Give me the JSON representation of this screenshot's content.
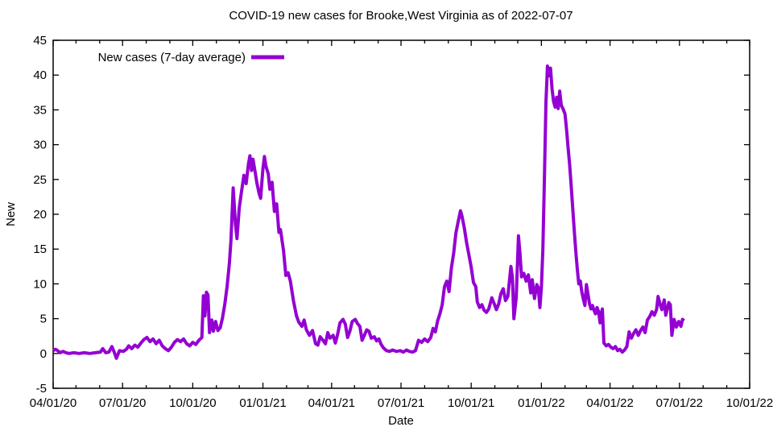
{
  "title": "COVID-19 new cases for Brooke,West Virginia as of 2022-07-07",
  "chart_data": {
    "type": "line",
    "title": "COVID-19 new cases for Brooke,West Virginia as of 2022-07-07",
    "xlabel": "Date",
    "ylabel": "New",
    "ylim": [
      -5,
      45
    ],
    "xlim": [
      "04/01/20",
      "10/01/22"
    ],
    "grid": false,
    "legend_position": "top-left-inside",
    "background_color": "#ffffff",
    "border_color": "#000000",
    "y_ticks": [
      -5,
      0,
      5,
      10,
      15,
      20,
      25,
      30,
      35,
      40,
      45
    ],
    "x_ticks": [
      "04/01/20",
      "07/01/20",
      "10/01/20",
      "01/01/21",
      "04/01/21",
      "07/01/21",
      "10/01/21",
      "01/01/22",
      "04/01/22",
      "07/01/22",
      "10/01/22"
    ],
    "x_minor_ticks": "monthly",
    "series": [
      {
        "name": "New cases (7-day average)",
        "color": "#9400d3",
        "points": [
          [
            "2020-04-01",
            0.4
          ],
          [
            "2020-04-04",
            0.6
          ],
          [
            "2020-04-07",
            0.4
          ],
          [
            "2020-04-10",
            0.1
          ],
          [
            "2020-04-14",
            0.3
          ],
          [
            "2020-04-18",
            0.1
          ],
          [
            "2020-04-22",
            0.0
          ],
          [
            "2020-04-28",
            0.1
          ],
          [
            "2020-05-05",
            0.0
          ],
          [
            "2020-05-12",
            0.1
          ],
          [
            "2020-05-19",
            0.0
          ],
          [
            "2020-05-26",
            0.1
          ],
          [
            "2020-06-02",
            0.2
          ],
          [
            "2020-06-05",
            0.7
          ],
          [
            "2020-06-09",
            0.1
          ],
          [
            "2020-06-13",
            0.2
          ],
          [
            "2020-06-17",
            1.0
          ],
          [
            "2020-06-20",
            0.2
          ],
          [
            "2020-06-23",
            -0.7
          ],
          [
            "2020-06-27",
            0.4
          ],
          [
            "2020-07-02",
            0.3
          ],
          [
            "2020-07-06",
            0.6
          ],
          [
            "2020-07-09",
            1.1
          ],
          [
            "2020-07-13",
            0.7
          ],
          [
            "2020-07-17",
            1.2
          ],
          [
            "2020-07-21",
            0.9
          ],
          [
            "2020-07-25",
            1.5
          ],
          [
            "2020-07-29",
            2.0
          ],
          [
            "2020-08-02",
            2.3
          ],
          [
            "2020-08-06",
            1.7
          ],
          [
            "2020-08-10",
            2.1
          ],
          [
            "2020-08-14",
            1.4
          ],
          [
            "2020-08-18",
            1.9
          ],
          [
            "2020-08-22",
            1.1
          ],
          [
            "2020-08-26",
            0.7
          ],
          [
            "2020-08-30",
            0.4
          ],
          [
            "2020-09-03",
            0.9
          ],
          [
            "2020-09-07",
            1.6
          ],
          [
            "2020-09-11",
            2.0
          ],
          [
            "2020-09-15",
            1.7
          ],
          [
            "2020-09-19",
            2.1
          ],
          [
            "2020-09-23",
            1.4
          ],
          [
            "2020-09-27",
            1.1
          ],
          [
            "2020-10-01",
            1.6
          ],
          [
            "2020-10-05",
            1.3
          ],
          [
            "2020-10-09",
            1.9
          ],
          [
            "2020-10-13",
            2.3
          ],
          [
            "2020-10-15",
            8.3
          ],
          [
            "2020-10-17",
            5.4
          ],
          [
            "2020-10-19",
            8.8
          ],
          [
            "2020-10-21",
            8.4
          ],
          [
            "2020-10-23",
            3.0
          ],
          [
            "2020-10-26",
            4.8
          ],
          [
            "2020-10-28",
            3.2
          ],
          [
            "2020-10-31",
            4.6
          ],
          [
            "2020-11-03",
            3.3
          ],
          [
            "2020-11-06",
            3.7
          ],
          [
            "2020-11-09",
            5.1
          ],
          [
            "2020-11-12",
            7.1
          ],
          [
            "2020-11-15",
            9.6
          ],
          [
            "2020-11-18",
            13.0
          ],
          [
            "2020-11-20",
            16.2
          ],
          [
            "2020-11-23",
            23.8
          ],
          [
            "2020-11-26",
            18.6
          ],
          [
            "2020-11-28",
            16.5
          ],
          [
            "2020-12-01",
            21.0
          ],
          [
            "2020-12-04",
            23.3
          ],
          [
            "2020-12-07",
            25.6
          ],
          [
            "2020-12-10",
            24.4
          ],
          [
            "2020-12-13",
            27.2
          ],
          [
            "2020-12-15",
            28.4
          ],
          [
            "2020-12-17",
            26.3
          ],
          [
            "2020-12-19",
            27.9
          ],
          [
            "2020-12-22",
            25.9
          ],
          [
            "2020-12-24",
            24.5
          ],
          [
            "2020-12-27",
            23.0
          ],
          [
            "2020-12-29",
            22.3
          ],
          [
            "2021-01-01",
            26.5
          ],
          [
            "2021-01-03",
            28.3
          ],
          [
            "2021-01-05",
            26.9
          ],
          [
            "2021-01-08",
            25.8
          ],
          [
            "2021-01-10",
            23.6
          ],
          [
            "2021-01-13",
            24.6
          ],
          [
            "2021-01-16",
            20.4
          ],
          [
            "2021-01-19",
            21.5
          ],
          [
            "2021-01-22",
            17.4
          ],
          [
            "2021-01-24",
            17.8
          ],
          [
            "2021-01-28",
            14.8
          ],
          [
            "2021-01-31",
            11.2
          ],
          [
            "2021-02-03",
            11.6
          ],
          [
            "2021-02-06",
            10.4
          ],
          [
            "2021-02-10",
            7.6
          ],
          [
            "2021-02-14",
            5.4
          ],
          [
            "2021-02-17",
            4.5
          ],
          [
            "2021-02-21",
            3.9
          ],
          [
            "2021-02-24",
            4.8
          ],
          [
            "2021-02-27",
            3.4
          ],
          [
            "2021-03-03",
            2.6
          ],
          [
            "2021-03-07",
            3.3
          ],
          [
            "2021-03-11",
            1.4
          ],
          [
            "2021-03-14",
            1.2
          ],
          [
            "2021-03-17",
            2.4
          ],
          [
            "2021-03-20",
            2.0
          ],
          [
            "2021-03-24",
            1.4
          ],
          [
            "2021-03-27",
            3.0
          ],
          [
            "2021-03-30",
            2.2
          ],
          [
            "2021-04-03",
            2.6
          ],
          [
            "2021-04-06",
            1.5
          ],
          [
            "2021-04-09",
            2.8
          ],
          [
            "2021-04-12",
            4.4
          ],
          [
            "2021-04-16",
            4.9
          ],
          [
            "2021-04-19",
            4.2
          ],
          [
            "2021-04-22",
            2.3
          ],
          [
            "2021-04-25",
            3.2
          ],
          [
            "2021-04-28",
            4.6
          ],
          [
            "2021-05-02",
            4.9
          ],
          [
            "2021-05-05",
            4.3
          ],
          [
            "2021-05-08",
            3.9
          ],
          [
            "2021-05-11",
            1.9
          ],
          [
            "2021-05-14",
            2.6
          ],
          [
            "2021-05-17",
            3.4
          ],
          [
            "2021-05-20",
            3.2
          ],
          [
            "2021-05-23",
            2.2
          ],
          [
            "2021-05-27",
            2.4
          ],
          [
            "2021-05-30",
            1.8
          ],
          [
            "2021-06-02",
            2.1
          ],
          [
            "2021-06-05",
            1.3
          ],
          [
            "2021-06-08",
            0.8
          ],
          [
            "2021-06-12",
            0.4
          ],
          [
            "2021-06-16",
            0.3
          ],
          [
            "2021-06-20",
            0.5
          ],
          [
            "2021-06-25",
            0.3
          ],
          [
            "2021-06-30",
            0.4
          ],
          [
            "2021-07-04",
            0.2
          ],
          [
            "2021-07-08",
            0.5
          ],
          [
            "2021-07-12",
            0.3
          ],
          [
            "2021-07-16",
            0.2
          ],
          [
            "2021-07-20",
            0.4
          ],
          [
            "2021-07-24",
            1.9
          ],
          [
            "2021-07-28",
            1.6
          ],
          [
            "2021-08-01",
            2.1
          ],
          [
            "2021-08-05",
            1.7
          ],
          [
            "2021-08-09",
            2.3
          ],
          [
            "2021-08-12",
            3.6
          ],
          [
            "2021-08-15",
            3.1
          ],
          [
            "2021-08-18",
            4.7
          ],
          [
            "2021-08-21",
            5.7
          ],
          [
            "2021-08-24",
            7.0
          ],
          [
            "2021-08-27",
            9.6
          ],
          [
            "2021-08-30",
            10.4
          ],
          [
            "2021-09-02",
            8.9
          ],
          [
            "2021-09-05",
            12.3
          ],
          [
            "2021-09-08",
            14.4
          ],
          [
            "2021-09-11",
            17.3
          ],
          [
            "2021-09-14",
            19.0
          ],
          [
            "2021-09-17",
            20.5
          ],
          [
            "2021-09-19",
            19.7
          ],
          [
            "2021-09-22",
            18.0
          ],
          [
            "2021-09-25",
            15.9
          ],
          [
            "2021-09-28",
            14.2
          ],
          [
            "2021-10-01",
            12.4
          ],
          [
            "2021-10-04",
            10.2
          ],
          [
            "2021-10-07",
            9.6
          ],
          [
            "2021-10-09",
            7.4
          ],
          [
            "2021-10-12",
            6.6
          ],
          [
            "2021-10-15",
            7.0
          ],
          [
            "2021-10-18",
            6.2
          ],
          [
            "2021-10-21",
            5.9
          ],
          [
            "2021-10-24",
            6.4
          ],
          [
            "2021-10-28",
            8.0
          ],
          [
            "2021-10-31",
            7.2
          ],
          [
            "2021-11-03",
            6.3
          ],
          [
            "2021-11-06",
            7.1
          ],
          [
            "2021-11-09",
            8.6
          ],
          [
            "2021-11-12",
            9.3
          ],
          [
            "2021-11-15",
            7.6
          ],
          [
            "2021-11-18",
            8.2
          ],
          [
            "2021-11-22",
            12.5
          ],
          [
            "2021-11-24",
            10.9
          ],
          [
            "2021-11-26",
            5.0
          ],
          [
            "2021-11-29",
            8.0
          ],
          [
            "2021-12-02",
            16.9
          ],
          [
            "2021-12-04",
            14.3
          ],
          [
            "2021-12-06",
            11.0
          ],
          [
            "2021-12-09",
            11.5
          ],
          [
            "2021-12-12",
            10.4
          ],
          [
            "2021-12-15",
            11.3
          ],
          [
            "2021-12-18",
            8.7
          ],
          [
            "2021-12-20",
            10.6
          ],
          [
            "2021-12-23",
            7.9
          ],
          [
            "2021-12-26",
            9.9
          ],
          [
            "2021-12-28",
            9.4
          ],
          [
            "2021-12-30",
            6.6
          ],
          [
            "2022-01-01",
            9.6
          ],
          [
            "2022-01-03",
            15.0
          ],
          [
            "2022-01-05",
            25.0
          ],
          [
            "2022-01-07",
            36.0
          ],
          [
            "2022-01-09",
            41.3
          ],
          [
            "2022-01-11",
            39.9
          ],
          [
            "2022-01-13",
            41.0
          ],
          [
            "2022-01-15",
            38.0
          ],
          [
            "2022-01-17",
            36.2
          ],
          [
            "2022-01-19",
            35.4
          ],
          [
            "2022-01-21",
            36.8
          ],
          [
            "2022-01-23",
            35.2
          ],
          [
            "2022-01-25",
            37.7
          ],
          [
            "2022-01-27",
            35.7
          ],
          [
            "2022-01-30",
            35.0
          ],
          [
            "2022-02-01",
            34.4
          ],
          [
            "2022-02-03",
            32.2
          ],
          [
            "2022-02-05",
            29.6
          ],
          [
            "2022-02-07",
            27.2
          ],
          [
            "2022-02-09",
            24.2
          ],
          [
            "2022-02-11",
            21.0
          ],
          [
            "2022-02-13",
            17.8
          ],
          [
            "2022-02-15",
            14.8
          ],
          [
            "2022-02-17",
            12.2
          ],
          [
            "2022-02-19",
            10.0
          ],
          [
            "2022-02-21",
            10.4
          ],
          [
            "2022-02-23",
            8.8
          ],
          [
            "2022-02-25",
            7.8
          ],
          [
            "2022-02-27",
            6.9
          ],
          [
            "2022-03-01",
            9.9
          ],
          [
            "2022-03-03",
            8.6
          ],
          [
            "2022-03-05",
            7.2
          ],
          [
            "2022-03-07",
            6.4
          ],
          [
            "2022-03-09",
            6.9
          ],
          [
            "2022-03-11",
            6.2
          ],
          [
            "2022-03-13",
            5.7
          ],
          [
            "2022-03-15",
            6.6
          ],
          [
            "2022-03-17",
            6.0
          ],
          [
            "2022-03-19",
            4.4
          ],
          [
            "2022-03-21",
            6.0
          ],
          [
            "2022-03-22",
            6.4
          ],
          [
            "2022-03-24",
            1.5
          ],
          [
            "2022-03-27",
            1.1
          ],
          [
            "2022-03-30",
            1.3
          ],
          [
            "2022-04-02",
            0.9
          ],
          [
            "2022-04-05",
            0.7
          ],
          [
            "2022-04-08",
            1.0
          ],
          [
            "2022-04-11",
            0.4
          ],
          [
            "2022-04-14",
            0.6
          ],
          [
            "2022-04-17",
            0.2
          ],
          [
            "2022-04-20",
            0.5
          ],
          [
            "2022-04-23",
            1.0
          ],
          [
            "2022-04-26",
            3.1
          ],
          [
            "2022-04-29",
            2.2
          ],
          [
            "2022-05-02",
            2.9
          ],
          [
            "2022-05-05",
            3.4
          ],
          [
            "2022-05-08",
            2.6
          ],
          [
            "2022-05-11",
            3.3
          ],
          [
            "2022-05-14",
            3.8
          ],
          [
            "2022-05-17",
            3.0
          ],
          [
            "2022-05-20",
            4.8
          ],
          [
            "2022-05-23",
            5.3
          ],
          [
            "2022-05-26",
            6.0
          ],
          [
            "2022-05-29",
            5.5
          ],
          [
            "2022-06-01",
            6.3
          ],
          [
            "2022-06-03",
            8.2
          ],
          [
            "2022-06-06",
            6.9
          ],
          [
            "2022-06-08",
            6.3
          ],
          [
            "2022-06-11",
            7.7
          ],
          [
            "2022-06-13",
            5.5
          ],
          [
            "2022-06-15",
            6.4
          ],
          [
            "2022-06-17",
            7.3
          ],
          [
            "2022-06-19",
            7.0
          ],
          [
            "2022-06-21",
            2.6
          ],
          [
            "2022-06-24",
            4.9
          ],
          [
            "2022-06-27",
            3.8
          ],
          [
            "2022-06-30",
            4.6
          ],
          [
            "2022-07-03",
            3.9
          ],
          [
            "2022-07-05",
            4.9
          ],
          [
            "2022-07-07",
            4.7
          ]
        ]
      }
    ]
  }
}
